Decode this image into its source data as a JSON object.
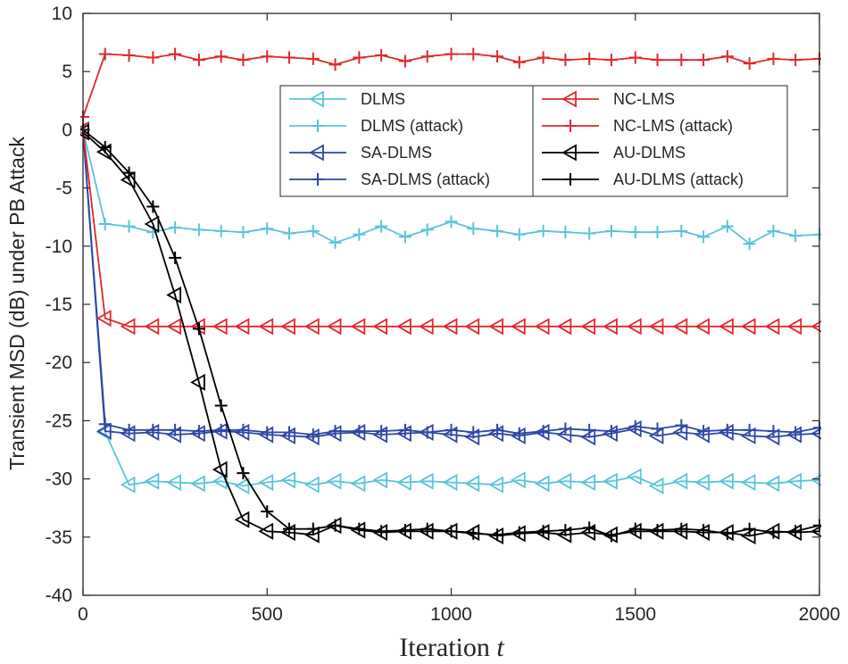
{
  "chart_data": {
    "type": "line",
    "title": "",
    "xlabel": "Iteration",
    "xlabel_var": "t",
    "ylabel": "Transient MSD (dB) under PB Attack",
    "xlim": [
      0,
      2000
    ],
    "ylim": [
      -40,
      10
    ],
    "xticks": [
      0,
      500,
      1000,
      1500,
      2000
    ],
    "yticks": [
      10,
      5,
      0,
      -5,
      -10,
      -15,
      -20,
      -25,
      -30,
      -35,
      -40
    ],
    "grid": false,
    "legend_location": "top-right (inside, two columns)",
    "colors": {
      "dlms": "#5bc4d8",
      "sa_dlms": "#2f46a6",
      "nc_lms": "#e0282b",
      "au_dlms": "#000000"
    },
    "series": [
      {
        "name": "DLMS",
        "color": "#5bc4d8",
        "marker": "triangle-left",
        "x": [
          0,
          60,
          125,
          190,
          250,
          315,
          375,
          435,
          500,
          560,
          625,
          685,
          750,
          810,
          875,
          935,
          1000,
          1060,
          1125,
          1185,
          1250,
          1310,
          1375,
          1435,
          1500,
          1560,
          1625,
          1685,
          1750,
          1810,
          1875,
          1935,
          2000
        ],
        "y": [
          0,
          -26,
          -30.5,
          -30.2,
          -30.3,
          -30.4,
          -30.2,
          -30.6,
          -30.3,
          -30.1,
          -30.5,
          -30.2,
          -30.4,
          -30.1,
          -30.3,
          -30.2,
          -30.3,
          -30.4,
          -30.5,
          -30.1,
          -30.4,
          -30.2,
          -30.3,
          -30.2,
          -29.8,
          -30.6,
          -30.2,
          -30.3,
          -30.2,
          -30.3,
          -30.4,
          -30.2,
          -30.1
        ]
      },
      {
        "name": "DLMS (attack)",
        "color": "#5bc4d8",
        "marker": "plus",
        "x": [
          0,
          60,
          125,
          190,
          250,
          315,
          375,
          435,
          500,
          560,
          625,
          685,
          750,
          810,
          875,
          935,
          1000,
          1060,
          1125,
          1185,
          1250,
          1310,
          1375,
          1435,
          1500,
          1560,
          1625,
          1685,
          1750,
          1810,
          1875,
          1935,
          2000
        ],
        "y": [
          0,
          -8.1,
          -8.3,
          -8.8,
          -8.4,
          -8.6,
          -8.7,
          -8.8,
          -8.5,
          -8.9,
          -8.7,
          -9.7,
          -9.0,
          -8.3,
          -9.2,
          -8.6,
          -7.9,
          -8.5,
          -8.7,
          -9.0,
          -8.7,
          -8.8,
          -8.9,
          -8.7,
          -8.8,
          -8.8,
          -8.7,
          -9.2,
          -8.3,
          -9.8,
          -8.7,
          -9.1,
          -9.0
        ]
      },
      {
        "name": "SA-DLMS",
        "color": "#2f46a6",
        "marker": "triangle-left",
        "x": [
          0,
          60,
          125,
          190,
          250,
          315,
          375,
          435,
          500,
          560,
          625,
          685,
          750,
          810,
          875,
          935,
          1000,
          1060,
          1125,
          1185,
          1250,
          1310,
          1375,
          1435,
          1500,
          1560,
          1625,
          1685,
          1750,
          1810,
          1875,
          1935,
          2000
        ],
        "y": [
          0,
          -25.9,
          -26.1,
          -26.0,
          -26.2,
          -26.1,
          -25.9,
          -26.0,
          -26.2,
          -26.3,
          -26.4,
          -26.1,
          -26.0,
          -26.2,
          -26.1,
          -26.0,
          -26.2,
          -26.4,
          -26.1,
          -26.3,
          -26.0,
          -26.2,
          -26.4,
          -26.1,
          -25.7,
          -26.3,
          -26.0,
          -26.2,
          -26.0,
          -26.3,
          -26.4,
          -26.2,
          -26.1
        ]
      },
      {
        "name": "SA-DLMS (attack)",
        "color": "#2f46a6",
        "marker": "plus",
        "x": [
          0,
          60,
          125,
          190,
          250,
          315,
          375,
          435,
          500,
          560,
          625,
          685,
          750,
          810,
          875,
          935,
          1000,
          1060,
          1125,
          1185,
          1250,
          1310,
          1375,
          1435,
          1500,
          1560,
          1625,
          1685,
          1750,
          1810,
          1875,
          1935,
          2000
        ],
        "y": [
          0,
          -25.3,
          -25.8,
          -25.8,
          -25.8,
          -25.9,
          -25.8,
          -25.8,
          -26.0,
          -26.0,
          -26.2,
          -25.9,
          -25.9,
          -25.9,
          -25.8,
          -26.0,
          -25.8,
          -26.0,
          -25.8,
          -26.1,
          -25.9,
          -25.7,
          -25.8,
          -25.9,
          -25.5,
          -25.7,
          -25.4,
          -25.9,
          -25.8,
          -25.8,
          -25.9,
          -26.0,
          -25.6
        ]
      },
      {
        "name": "NC-LMS",
        "color": "#e0282b",
        "marker": "triangle-left",
        "x": [
          0,
          60,
          125,
          190,
          250,
          315,
          375,
          435,
          500,
          560,
          625,
          685,
          750,
          810,
          875,
          935,
          1000,
          1060,
          1125,
          1185,
          1250,
          1310,
          1375,
          1435,
          1500,
          1560,
          1625,
          1685,
          1750,
          1810,
          1875,
          1935,
          2000
        ],
        "y": [
          0,
          -16.2,
          -16.9,
          -16.9,
          -16.9,
          -16.9,
          -16.9,
          -16.9,
          -16.9,
          -16.9,
          -16.9,
          -16.9,
          -16.9,
          -16.9,
          -16.9,
          -16.9,
          -16.9,
          -16.9,
          -16.9,
          -16.9,
          -16.9,
          -16.9,
          -16.9,
          -16.9,
          -16.9,
          -16.9,
          -16.9,
          -16.9,
          -16.9,
          -16.9,
          -16.9,
          -16.9,
          -16.9
        ]
      },
      {
        "name": "NC-LMS (attack)",
        "color": "#e0282b",
        "marker": "plus",
        "x": [
          0,
          60,
          125,
          190,
          250,
          315,
          375,
          435,
          500,
          560,
          625,
          685,
          750,
          810,
          875,
          935,
          1000,
          1060,
          1125,
          1185,
          1250,
          1310,
          1375,
          1435,
          1500,
          1560,
          1625,
          1685,
          1750,
          1810,
          1875,
          1935,
          2000
        ],
        "y": [
          1.1,
          6.5,
          6.4,
          6.2,
          6.5,
          6.0,
          6.3,
          6.0,
          6.3,
          6.2,
          6.1,
          5.6,
          6.2,
          6.4,
          5.9,
          6.3,
          6.5,
          6.5,
          6.3,
          5.8,
          6.2,
          6.0,
          6.1,
          6.0,
          6.2,
          6.0,
          6.0,
          6.0,
          6.3,
          5.7,
          6.1,
          6.0,
          6.1
        ]
      },
      {
        "name": "AU-DLMS",
        "color": "#000000",
        "marker": "triangle-left",
        "x": [
          0,
          60,
          125,
          190,
          250,
          315,
          375,
          435,
          500,
          560,
          625,
          685,
          750,
          810,
          875,
          935,
          1000,
          1060,
          1125,
          1185,
          1250,
          1310,
          1375,
          1435,
          1500,
          1560,
          1625,
          1685,
          1750,
          1810,
          1875,
          1935,
          2000
        ],
        "y": [
          -0.2,
          -1.9,
          -4.3,
          -8.1,
          -14.2,
          -21.7,
          -29.2,
          -33.5,
          -34.5,
          -34.6,
          -34.8,
          -34.0,
          -34.4,
          -34.6,
          -34.5,
          -34.5,
          -34.5,
          -34.6,
          -34.9,
          -34.7,
          -34.6,
          -34.8,
          -34.6,
          -34.8,
          -34.5,
          -34.5,
          -34.5,
          -34.6,
          -34.6,
          -34.9,
          -34.5,
          -34.6,
          -34.5
        ]
      },
      {
        "name": "AU-DLMS (attack)",
        "color": "#000000",
        "marker": "plus",
        "x": [
          0,
          60,
          125,
          190,
          250,
          315,
          375,
          435,
          500,
          560,
          625,
          685,
          750,
          810,
          875,
          935,
          1000,
          1060,
          1125,
          1185,
          1250,
          1310,
          1375,
          1435,
          1500,
          1560,
          1625,
          1685,
          1750,
          1810,
          1875,
          1935,
          2000
        ],
        "y": [
          0,
          -1.5,
          -3.7,
          -6.6,
          -11.0,
          -17.1,
          -23.7,
          -29.5,
          -32.8,
          -34.3,
          -34.3,
          -34.0,
          -34.3,
          -34.5,
          -34.4,
          -34.3,
          -34.5,
          -34.7,
          -34.8,
          -34.6,
          -34.5,
          -34.4,
          -34.2,
          -34.9,
          -34.3,
          -34.4,
          -34.3,
          -34.4,
          -34.7,
          -34.3,
          -34.6,
          -34.5,
          -34.0
        ]
      }
    ],
    "legend": {
      "columns": [
        [
          "DLMS",
          "DLMS (attack)",
          "SA-DLMS",
          "SA-DLMS (attack)"
        ],
        [
          "NC-LMS",
          "NC-LMS (attack)",
          "AU-DLMS",
          "AU-DLMS (attack)"
        ]
      ]
    }
  }
}
